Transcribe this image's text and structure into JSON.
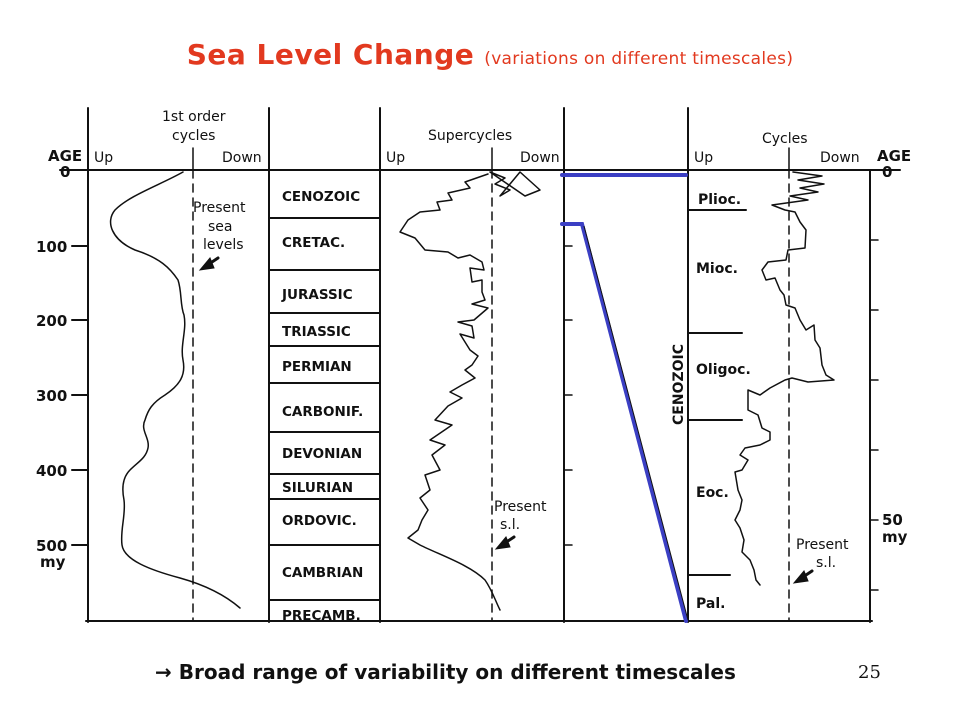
{
  "title": {
    "main": "Sea Level Change",
    "sub": "(variations on different timescales)"
  },
  "caption": {
    "arrow": "→",
    "text": "Broad range of variability on different timescales"
  },
  "slide_number": "25",
  "panel_first_order": {
    "header": [
      "1st order",
      "cycles"
    ],
    "up": "Up",
    "down": "Down",
    "present_label": [
      "Present",
      "sea",
      "levels"
    ]
  },
  "age_axis_left": {
    "title": "AGE",
    "ticks": [
      "0",
      "100",
      "200",
      "300",
      "400",
      "500"
    ],
    "unit": "my"
  },
  "eras": [
    "CENOZOIC",
    "CRETAC.",
    "JURASSIC",
    "TRIASSIC",
    "PERMIAN",
    "CARBONIF.",
    "DEVONIAN",
    "SILURIAN",
    "ORDOVIC.",
    "CAMBRIAN",
    "PRECAMB."
  ],
  "panel_supercycles": {
    "header": "Supercycles",
    "up": "Up",
    "down": "Down",
    "present_label": [
      "Present",
      "s.l."
    ]
  },
  "panel_cycles": {
    "header": "Cycles",
    "up": "Up",
    "down": "Down",
    "era_label": "CENOZOIC",
    "epochs": [
      "Plioc.",
      "Mioc.",
      "Oligoc.",
      "Eoc.",
      "Pal."
    ],
    "present_label": [
      "Present",
      "s.l."
    ]
  },
  "age_axis_right": {
    "title": "AGE",
    "ticks": [
      "0",
      "50"
    ],
    "unit": "my"
  },
  "connector_color": "#3b3fc4",
  "accent_color": "#e2391f"
}
